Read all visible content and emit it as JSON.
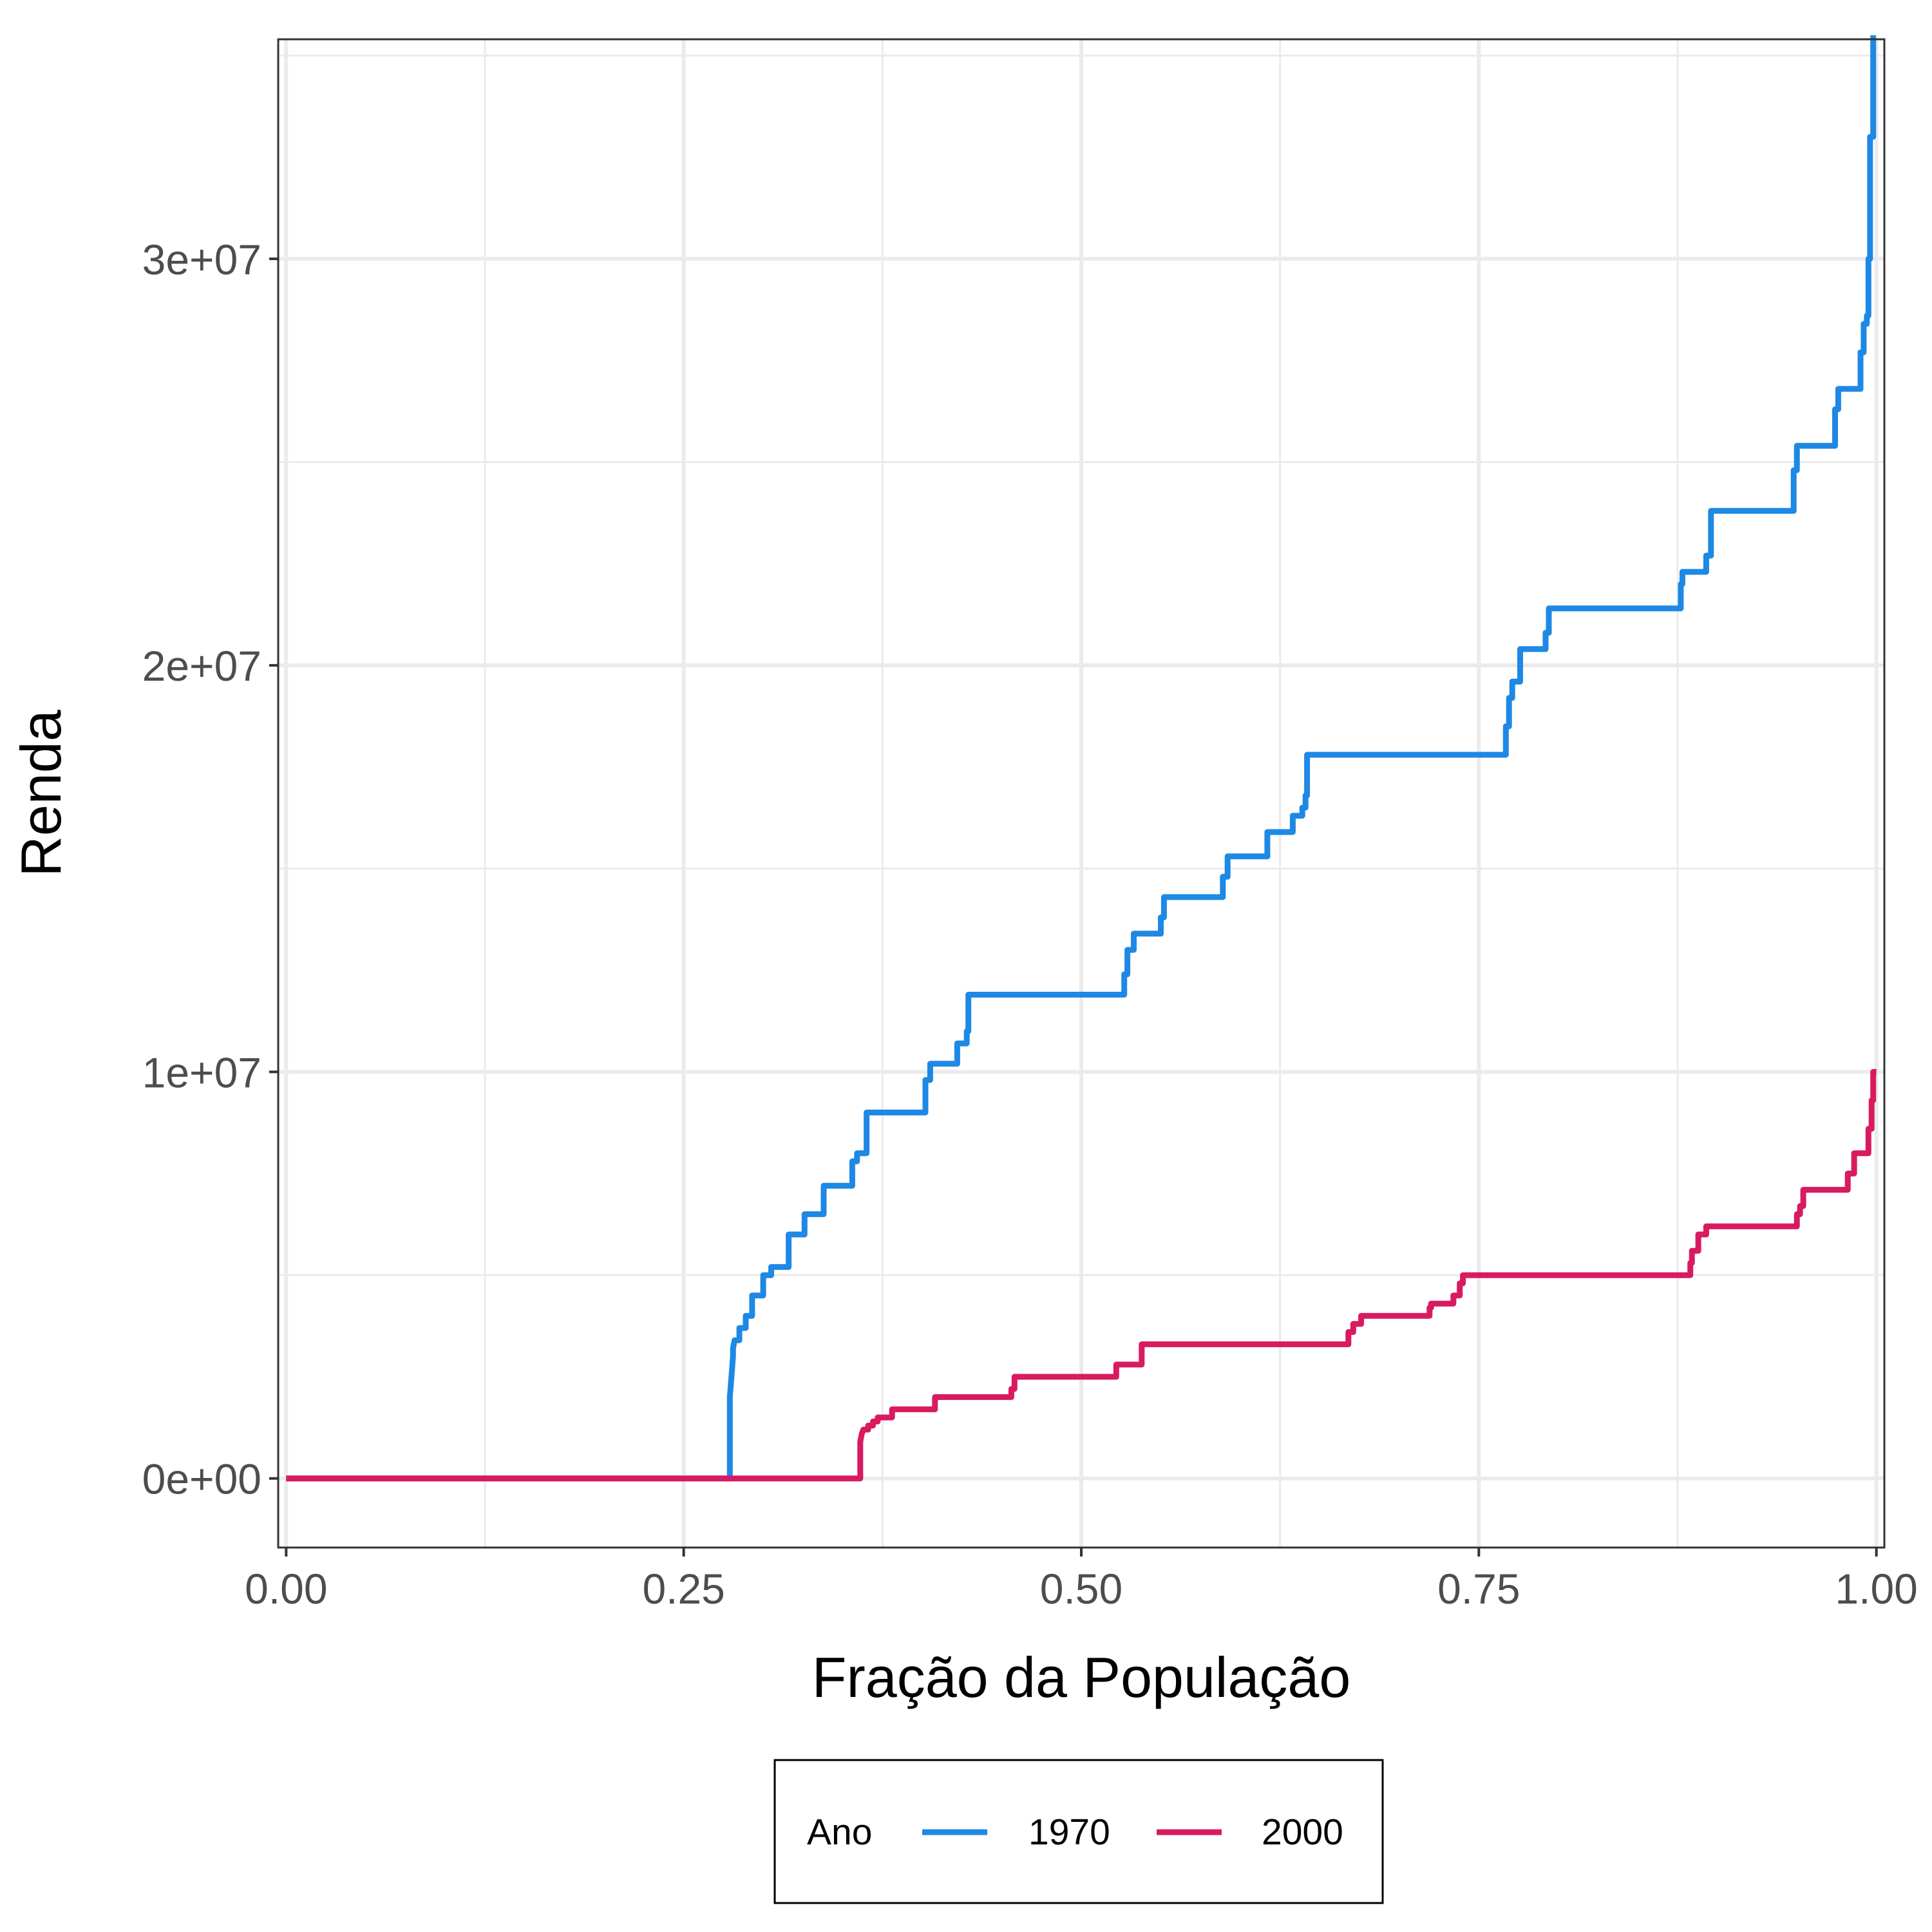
{
  "chart_data": {
    "type": "line",
    "xlabel": "Fração da População",
    "ylabel": "Renda",
    "xlim": [
      -0.005,
      1.005
    ],
    "ylim": [
      -1700000,
      35400000
    ],
    "x_ticks": [
      {
        "value": 0,
        "label": "0.00"
      },
      {
        "value": 0.25,
        "label": "0.25"
      },
      {
        "value": 0.5,
        "label": "0.50"
      },
      {
        "value": 0.75,
        "label": "0.75"
      },
      {
        "value": 1,
        "label": "1.00"
      }
    ],
    "y_ticks": [
      {
        "value": 0,
        "label": "0e+00"
      },
      {
        "value": 10000000,
        "label": "1e+07"
      },
      {
        "value": 20000000,
        "label": "2e+07"
      },
      {
        "value": 30000000,
        "label": "3e+07"
      }
    ],
    "x_minor": [
      0.125,
      0.375,
      0.625,
      0.875
    ],
    "y_minor": [
      5000000,
      15000000,
      25000000,
      35000000
    ],
    "grid": true,
    "legend": {
      "title": "Ano",
      "position": "bottom",
      "entries": [
        {
          "label": "1970",
          "color": "#1e88e5"
        },
        {
          "label": "2000",
          "color": "#d81b60"
        }
      ]
    },
    "series": [
      {
        "name": "1970",
        "color": "#1e88e5",
        "x": [
          0,
          0.279,
          0.279,
          0.28,
          0.281,
          0.281,
          0.282,
          0.285,
          0.285,
          0.289,
          0.289,
          0.293,
          0.293,
          0.3,
          0.3,
          0.305,
          0.305,
          0.316,
          0.316,
          0.326,
          0.326,
          0.338,
          0.338,
          0.356,
          0.356,
          0.359,
          0.359,
          0.365,
          0.365,
          0.402,
          0.402,
          0.405,
          0.405,
          0.422,
          0.422,
          0.428,
          0.428,
          0.429,
          0.429,
          0.527,
          0.527,
          0.529,
          0.529,
          0.533,
          0.533,
          0.55,
          0.55,
          0.552,
          0.552,
          0.589,
          0.589,
          0.592,
          0.592,
          0.617,
          0.617,
          0.633,
          0.633,
          0.639,
          0.639,
          0.641,
          0.641,
          0.642,
          0.642,
          0.767,
          0.767,
          0.769,
          0.769,
          0.771,
          0.771,
          0.776,
          0.776,
          0.792,
          0.792,
          0.794,
          0.794,
          0.877,
          0.877,
          0.878,
          0.878,
          0.893,
          0.893,
          0.896,
          0.896,
          0.948,
          0.948,
          0.95,
          0.95,
          0.974,
          0.974,
          0.976,
          0.976,
          0.99,
          0.99,
          0.992,
          0.992,
          0.994,
          0.994,
          0.995,
          0.995,
          0.996,
          0.996,
          0.998,
          0.998
        ],
        "y": [
          0,
          0,
          2000000,
          2500000,
          3000000,
          3200000,
          3400000,
          3400000,
          3700000,
          3700000,
          4000000,
          4000000,
          4500000,
          4500000,
          5000000,
          5000000,
          5200000,
          5200000,
          6000000,
          6000000,
          6500000,
          6500000,
          7200000,
          7200000,
          7800000,
          7800000,
          8000000,
          8000000,
          9000000,
          9000000,
          9800000,
          9800000,
          10200000,
          10200000,
          10700000,
          10700000,
          11000000,
          11000000,
          11900000,
          11900000,
          12400000,
          12400000,
          13000000,
          13000000,
          13400000,
          13400000,
          13800000,
          13800000,
          14300000,
          14300000,
          14800000,
          14800000,
          15300000,
          15300000,
          15900000,
          15900000,
          16300000,
          16300000,
          16500000,
          16500000,
          16800000,
          16800000,
          17800000,
          17800000,
          18500000,
          18500000,
          19200000,
          19200000,
          19600000,
          19600000,
          20400000,
          20400000,
          20800000,
          20800000,
          21400000,
          21400000,
          22000000,
          22000000,
          22300000,
          22300000,
          22700000,
          22700000,
          23800000,
          23800000,
          24800000,
          24800000,
          25400000,
          25400000,
          26300000,
          26300000,
          26800000,
          26800000,
          27700000,
          27700000,
          28400000,
          28400000,
          28600000,
          28600000,
          30000000,
          30000000,
          33000000,
          33000000,
          35500000
        ]
      },
      {
        "name": "2000",
        "color": "#d81b60",
        "x": [
          0,
          0.361,
          0.361,
          0.362,
          0.363,
          0.366,
          0.366,
          0.369,
          0.369,
          0.372,
          0.372,
          0.381,
          0.381,
          0.408,
          0.408,
          0.456,
          0.456,
          0.458,
          0.458,
          0.522,
          0.522,
          0.538,
          0.538,
          0.668,
          0.668,
          0.671,
          0.671,
          0.676,
          0.676,
          0.719,
          0.719,
          0.72,
          0.72,
          0.734,
          0.734,
          0.738,
          0.738,
          0.74,
          0.74,
          0.883,
          0.883,
          0.884,
          0.884,
          0.888,
          0.888,
          0.893,
          0.893,
          0.95,
          0.95,
          0.952,
          0.952,
          0.954,
          0.954,
          0.982,
          0.982,
          0.986,
          0.986,
          0.995,
          0.995,
          0.997,
          0.997,
          0.998,
          0.998,
          1.0
        ],
        "y": [
          0,
          0,
          900000,
          1100000,
          1200000,
          1200000,
          1300000,
          1300000,
          1400000,
          1400000,
          1500000,
          1500000,
          1700000,
          1700000,
          2000000,
          2000000,
          2200000,
          2200000,
          2500000,
          2500000,
          2800000,
          2800000,
          3300000,
          3300000,
          3600000,
          3600000,
          3800000,
          3800000,
          4000000,
          4000000,
          4200000,
          4200000,
          4300000,
          4300000,
          4500000,
          4500000,
          4800000,
          4800000,
          5000000,
          5000000,
          5300000,
          5300000,
          5600000,
          5600000,
          6000000,
          6000000,
          6200000,
          6200000,
          6500000,
          6500000,
          6700000,
          6700000,
          7100000,
          7100000,
          7500000,
          7500000,
          8000000,
          8000000,
          8600000,
          8600000,
          9300000,
          9300000,
          10000000,
          10000000
        ]
      }
    ]
  }
}
